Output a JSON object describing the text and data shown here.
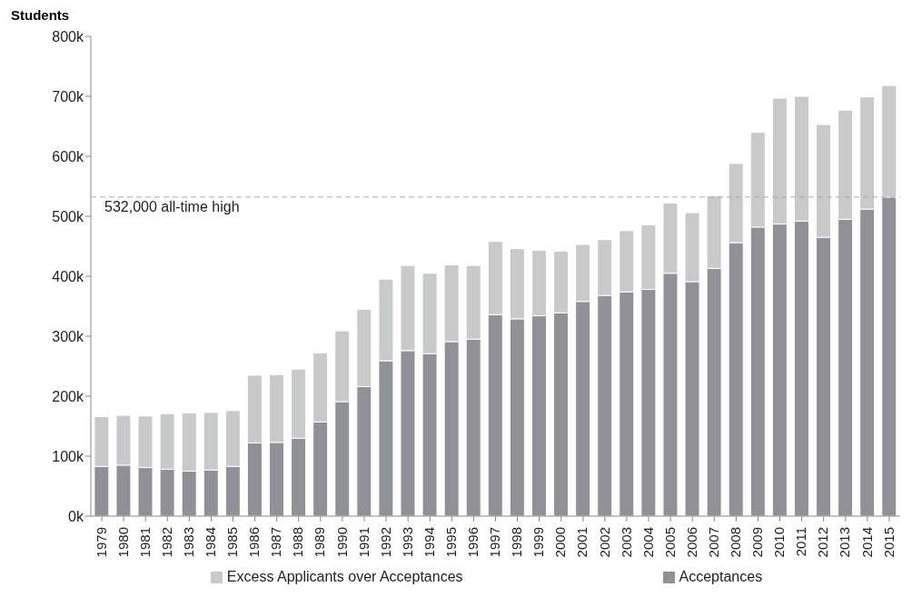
{
  "chart_data": {
    "type": "bar",
    "stacked": true,
    "ylabel": "Students",
    "categories": [
      "1979",
      "1980",
      "1981",
      "1982",
      "1983",
      "1984",
      "1985",
      "1986",
      "1987",
      "1988",
      "1989",
      "1990",
      "1991",
      "1992",
      "1993",
      "1994",
      "1995",
      "1996",
      "1997",
      "1998",
      "1999",
      "2000",
      "2001",
      "2002",
      "2003",
      "2004",
      "2005",
      "2006",
      "2007",
      "2008",
      "2009",
      "2010",
      "2011",
      "2012",
      "2013",
      "2014",
      "2015"
    ],
    "series": [
      {
        "name": "Acceptances",
        "color": "#909196",
        "values": [
          83,
          85,
          81,
          78,
          75,
          77,
          83,
          122,
          123,
          130,
          157,
          191,
          216,
          259,
          276,
          271,
          291,
          295,
          336,
          329,
          334,
          339,
          358,
          368,
          374,
          378,
          405,
          391,
          413,
          456,
          482,
          487,
          492,
          465,
          495,
          512,
          532
        ]
      },
      {
        "name": "Excess Applicants over Acceptances",
        "color": "#c8c9cb",
        "values": [
          83,
          83,
          86,
          93,
          97,
          96,
          93,
          113,
          113,
          115,
          115,
          118,
          129,
          136,
          142,
          134,
          128,
          123,
          122,
          117,
          109,
          103,
          95,
          93,
          102,
          108,
          117,
          115,
          121,
          132,
          158,
          210,
          208,
          188,
          182,
          187,
          186
        ]
      }
    ],
    "ylim": [
      0,
      800
    ],
    "yticks": [
      {
        "value": 0,
        "label": "0k"
      },
      {
        "value": 100,
        "label": "100k"
      },
      {
        "value": 200,
        "label": "200k"
      },
      {
        "value": 300,
        "label": "300k"
      },
      {
        "value": 400,
        "label": "400k"
      },
      {
        "value": 500,
        "label": "500k"
      },
      {
        "value": 600,
        "label": "600k"
      },
      {
        "value": 700,
        "label": "700k"
      },
      {
        "value": 800,
        "label": "800k"
      }
    ],
    "ref_lines": [
      {
        "axis": "y",
        "value": 532,
        "label": "532,000 all-time high",
        "color": "#aaaaaa",
        "line_style": "dashed"
      }
    ],
    "grid": false,
    "legend": "bottom"
  }
}
